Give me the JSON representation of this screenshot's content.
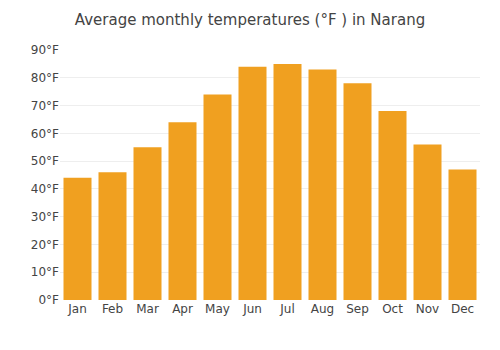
{
  "chart_data": {
    "type": "bar",
    "title": "Average monthly temperatures (°F ) in Narang",
    "categories": [
      "Jan",
      "Feb",
      "Mar",
      "Apr",
      "May",
      "Jun",
      "Jul",
      "Aug",
      "Sep",
      "Oct",
      "Nov",
      "Dec"
    ],
    "values": [
      44,
      46,
      55,
      64,
      74,
      84,
      85,
      83,
      78,
      68,
      56,
      47
    ],
    "color": "#F0A020",
    "ylim": [
      0,
      90
    ],
    "yticks": [
      {
        "value": 0,
        "label": "0°F"
      },
      {
        "value": 10,
        "label": "10°F"
      },
      {
        "value": 20,
        "label": "20°F"
      },
      {
        "value": 30,
        "label": "30°F"
      },
      {
        "value": 40,
        "label": "40°F"
      },
      {
        "value": 50,
        "label": "50°F"
      },
      {
        "value": 60,
        "label": "60°F"
      },
      {
        "value": 70,
        "label": "70°F"
      },
      {
        "value": 80,
        "label": "80°F"
      },
      {
        "value": 90,
        "label": "90°F"
      }
    ],
    "grid": true
  }
}
